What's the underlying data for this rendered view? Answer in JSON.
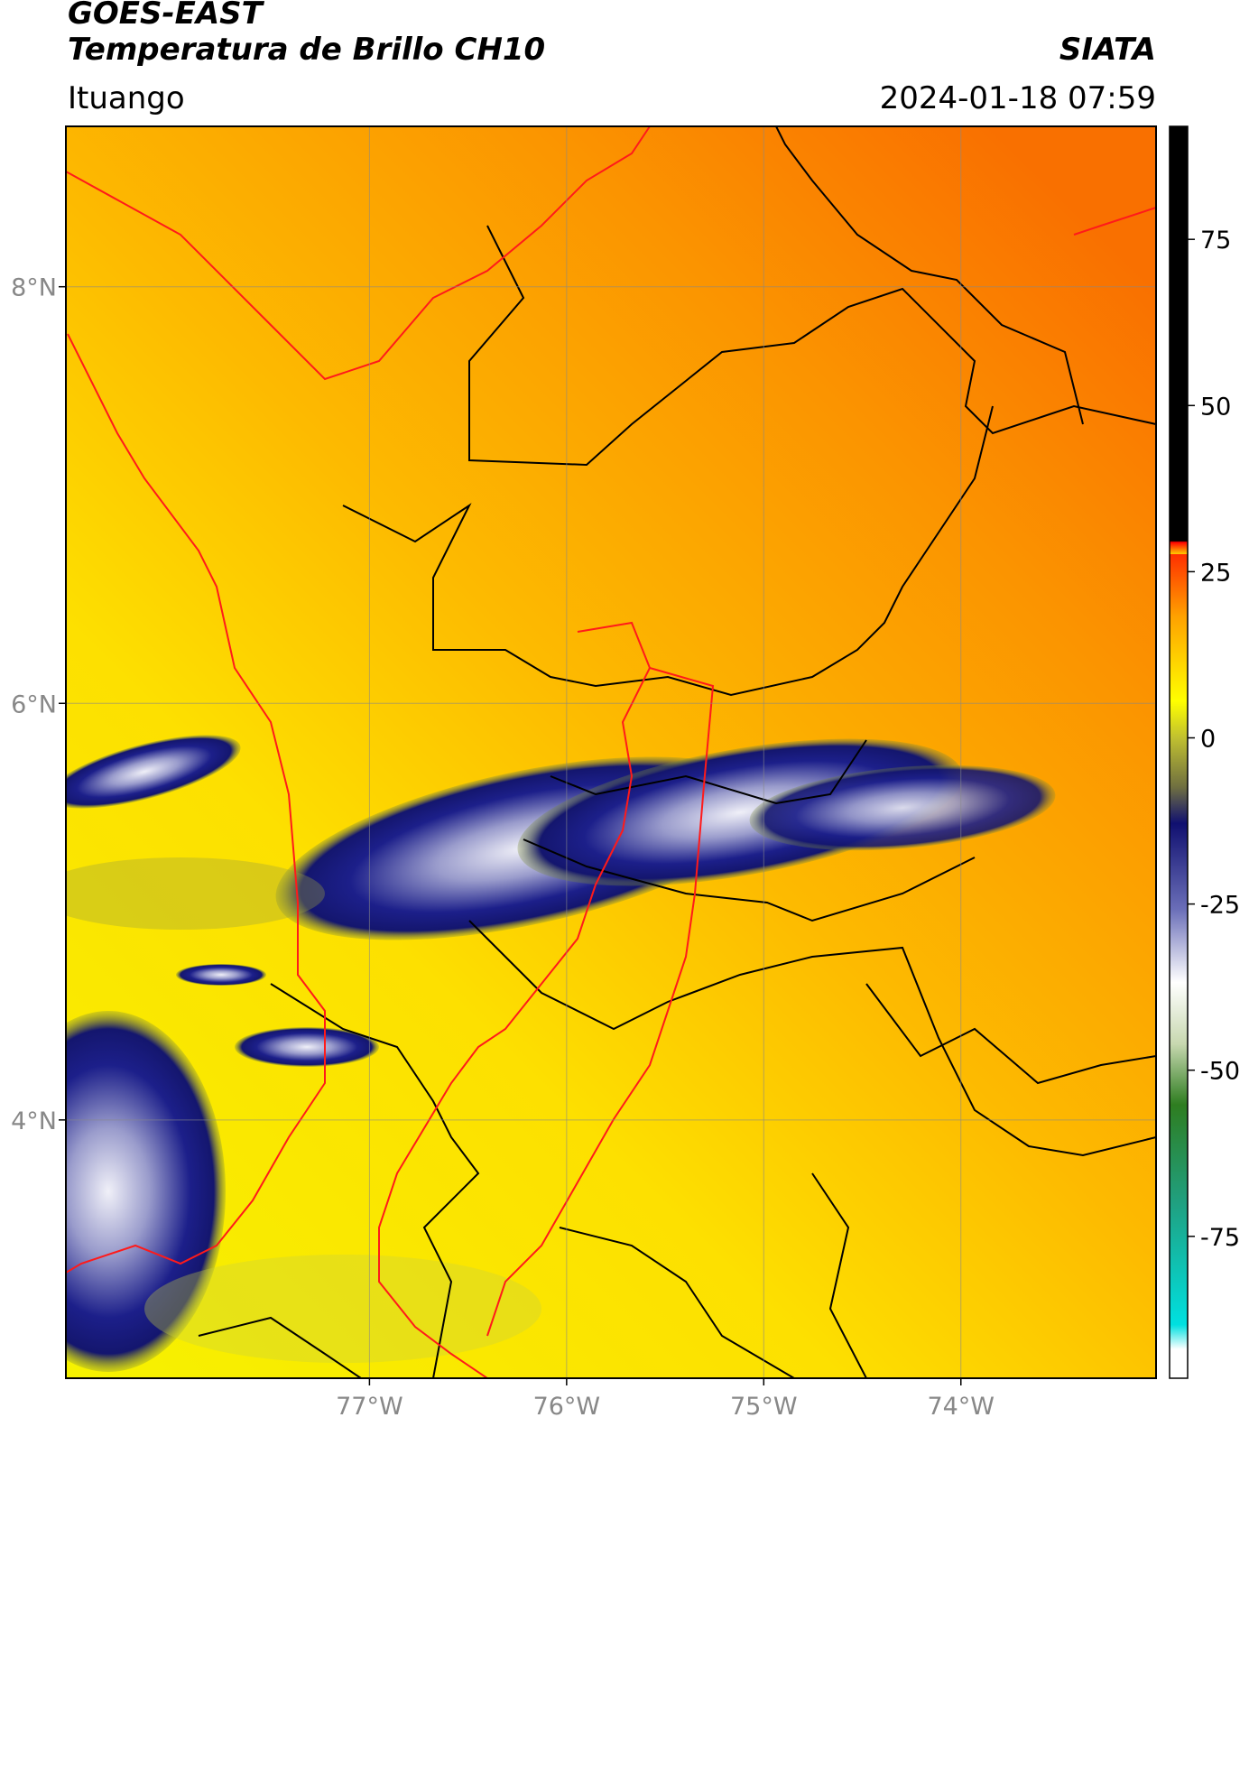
{
  "chart_data": {
    "type": "map",
    "title": "GOES-EAST",
    "subtitle": "Temperatura de Brillo CH10",
    "source": "SIATA",
    "location": "Ituango",
    "timestamp": "2024-01-18 07:59",
    "xlim": [
      -78.54,
      -73.01
    ],
    "ylim": [
      2.76,
      8.77
    ],
    "xticks": [
      {
        "value": -77,
        "label": "77°W"
      },
      {
        "value": -76,
        "label": "76°W"
      },
      {
        "value": -75,
        "label": "75°W"
      },
      {
        "value": -74,
        "label": "74°W"
      }
    ],
    "yticks": [
      {
        "value": 4,
        "label": "4°N"
      },
      {
        "value": 6,
        "label": "6°N"
      },
      {
        "value": 8,
        "label": "8°N"
      }
    ],
    "grid": true,
    "colorbar": {
      "lim": [
        -92,
        92
      ],
      "ticks": [
        -75,
        -50,
        -25,
        0,
        25,
        50,
        75
      ]
    }
  }
}
